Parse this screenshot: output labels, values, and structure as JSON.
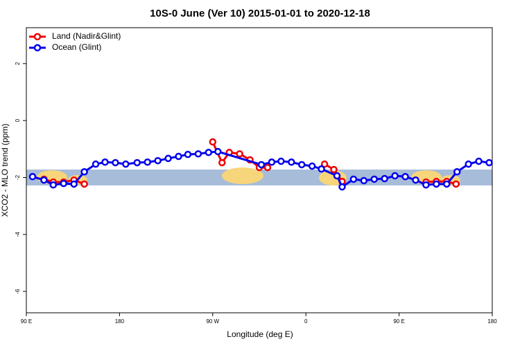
{
  "chart_data": {
    "type": "line",
    "title": "10S-0 June (Ver 10)   2015-01-01 to 2020-12-18",
    "x_label": "Longitude (deg E)",
    "y_label": "XCO2 - MLO trend (ppm)",
    "xlim": [
      90,
      540
    ],
    "ylim": [
      -6.75,
      3.26
    ],
    "xticks": [
      {
        "value": 90,
        "label": "90 E"
      },
      180,
      {
        "value": 270,
        "label": "90 W"
      },
      {
        "value": 360,
        "label": "0"
      },
      {
        "value": 450,
        "label": "90 E"
      },
      {
        "value": 540,
        "label": "180"
      }
    ],
    "yticks": [
      2,
      0,
      -2,
      -4,
      -6
    ],
    "legend": "top-left",
    "series": [
      {
        "name": "Land (Nadir&Glint)",
        "color": "#ee0000",
        "x": [
          107,
          116,
          126,
          136,
          146,
          null,
          270,
          279,
          286,
          296,
          306,
          315,
          323,
          null,
          378,
          387,
          395,
          null,
          476,
          486,
          496,
          505
        ],
        "values": [
          -2.06,
          -2.16,
          -2.16,
          -2.09,
          -2.23,
          null,
          -0.75,
          -1.48,
          -1.12,
          -1.17,
          -1.38,
          -1.65,
          -1.65,
          null,
          -1.53,
          -1.72,
          -2.14,
          null,
          -2.16,
          -2.14,
          -2.14,
          -2.23
        ]
      },
      {
        "name": "Ocean (Glint)",
        "color": "#0000ee",
        "x": [
          96,
          107,
          116,
          126,
          136,
          146,
          157,
          166,
          176,
          186,
          197,
          207,
          217,
          227,
          237,
          246,
          256,
          266,
          275,
          317,
          327,
          336,
          346,
          356,
          366,
          375,
          390,
          395,
          406,
          416,
          426,
          436,
          446,
          456,
          466,
          476,
          486,
          496,
          506,
          517,
          527,
          537
        ],
        "values": [
          -1.97,
          -2.09,
          -2.26,
          -2.21,
          -2.23,
          -1.8,
          -1.53,
          -1.46,
          -1.48,
          -1.53,
          -1.48,
          -1.46,
          -1.41,
          -1.33,
          -1.26,
          -1.19,
          -1.17,
          -1.12,
          -1.09,
          -1.55,
          -1.46,
          -1.43,
          -1.46,
          -1.55,
          -1.6,
          -1.7,
          -1.94,
          -2.33,
          -2.06,
          -2.11,
          -2.06,
          -2.04,
          -1.94,
          -1.97,
          -2.09,
          -2.26,
          -2.23,
          -2.23,
          -1.8,
          -1.53,
          -1.43,
          -1.48
        ]
      }
    ]
  }
}
